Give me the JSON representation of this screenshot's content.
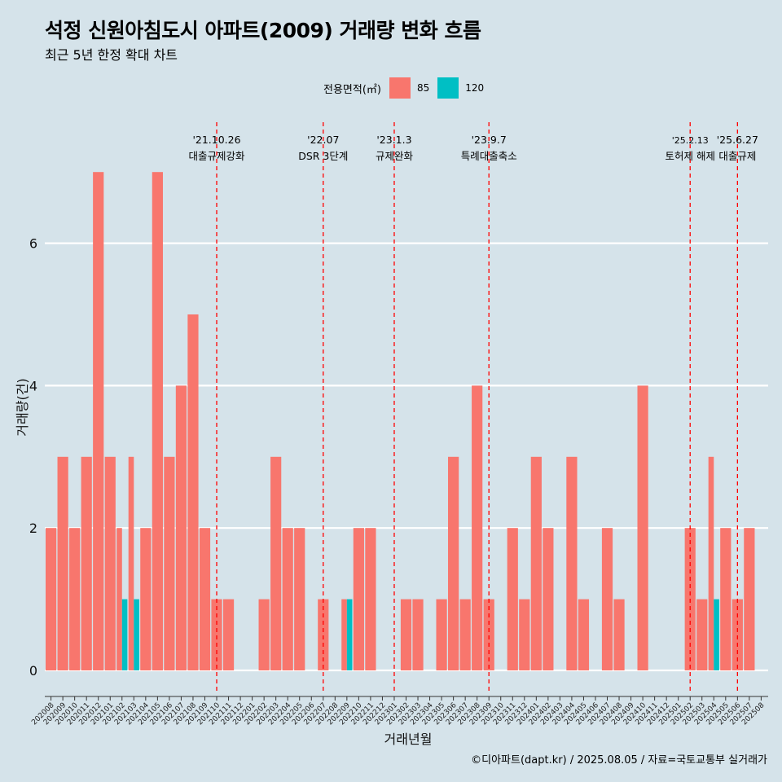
{
  "title": "석정 신원아침도시 아파트(2009) 거래량 변화 흐름",
  "subtitle": "최근 5년 한정 확대 차트",
  "caption": "©디아파트(dapt.kr) / 2025.08.05 / 자료=국토교통부 실거래가",
  "legend": {
    "title": "전용면적(㎡)",
    "items": [
      {
        "label": "85",
        "color": "#f8766d"
      },
      {
        "label": "120",
        "color": "#00bfc4"
      }
    ]
  },
  "chart_data": {
    "type": "bar",
    "xlabel": "거래년월",
    "ylabel": "거래량(건)",
    "ylim": [
      -0.3,
      7.35
    ],
    "yticks": [
      0,
      2,
      4,
      6
    ],
    "grid": true,
    "legend_position": "top",
    "categories": [
      "202008",
      "202009",
      "202010",
      "202011",
      "202012",
      "202101",
      "202102",
      "202103",
      "202104",
      "202105",
      "202106",
      "202107",
      "202108",
      "202109",
      "202110",
      "202111",
      "202112",
      "202201",
      "202202",
      "202203",
      "202204",
      "202205",
      "202206",
      "202207",
      "202208",
      "202209",
      "202210",
      "202211",
      "202212",
      "202301",
      "202302",
      "202303",
      "202304",
      "202305",
      "202306",
      "202307",
      "202308",
      "202309",
      "202310",
      "202311",
      "202312",
      "202401",
      "202402",
      "202403",
      "202404",
      "202405",
      "202406",
      "202407",
      "202408",
      "202409",
      "202410",
      "202411",
      "202412",
      "202501",
      "202502",
      "202503",
      "202504",
      "202505",
      "202506",
      "202507",
      "202508"
    ],
    "series": [
      {
        "name": "85",
        "color": "#f8766d",
        "values": [
          2,
          3,
          2,
          3,
          7,
          3,
          2,
          3,
          2,
          7,
          3,
          4,
          5,
          2,
          1,
          1,
          0,
          0,
          1,
          3,
          2,
          2,
          0,
          1,
          0,
          1,
          2,
          2,
          0,
          0,
          1,
          1,
          0,
          1,
          3,
          1,
          4,
          1,
          0,
          2,
          1,
          3,
          2,
          0,
          3,
          1,
          0,
          2,
          1,
          0,
          4,
          0,
          0,
          0,
          2,
          1,
          3,
          2,
          1,
          2,
          0
        ]
      },
      {
        "name": "120",
        "color": "#00bfc4",
        "values": [
          0,
          0,
          0,
          0,
          0,
          0,
          1,
          1,
          0,
          0,
          0,
          0,
          0,
          0,
          0,
          0,
          0,
          0,
          0,
          0,
          0,
          0,
          0,
          0,
          0,
          1,
          0,
          0,
          0,
          0,
          0,
          0,
          0,
          0,
          0,
          0,
          0,
          0,
          0,
          0,
          0,
          0,
          0,
          0,
          0,
          0,
          0,
          0,
          0,
          0,
          0,
          0,
          0,
          0,
          0,
          0,
          1,
          0,
          0,
          0,
          0
        ]
      }
    ],
    "annotations": [
      {
        "date": "'21.10.26",
        "label": "대출규제강화",
        "x": "202110"
      },
      {
        "date": "'22.07",
        "label": "DSR 3단계",
        "x": "202207"
      },
      {
        "date": "'23.1.3",
        "label": "규제완화",
        "x": "202301"
      },
      {
        "date": "'23.9.7",
        "label": "특례대출축소",
        "x": "202309"
      },
      {
        "date": "'25.2.13",
        "label": "토허제 해제",
        "x": "202502"
      },
      {
        "date": "'25.6.27",
        "label": "대출규제",
        "x": "202506"
      }
    ]
  }
}
